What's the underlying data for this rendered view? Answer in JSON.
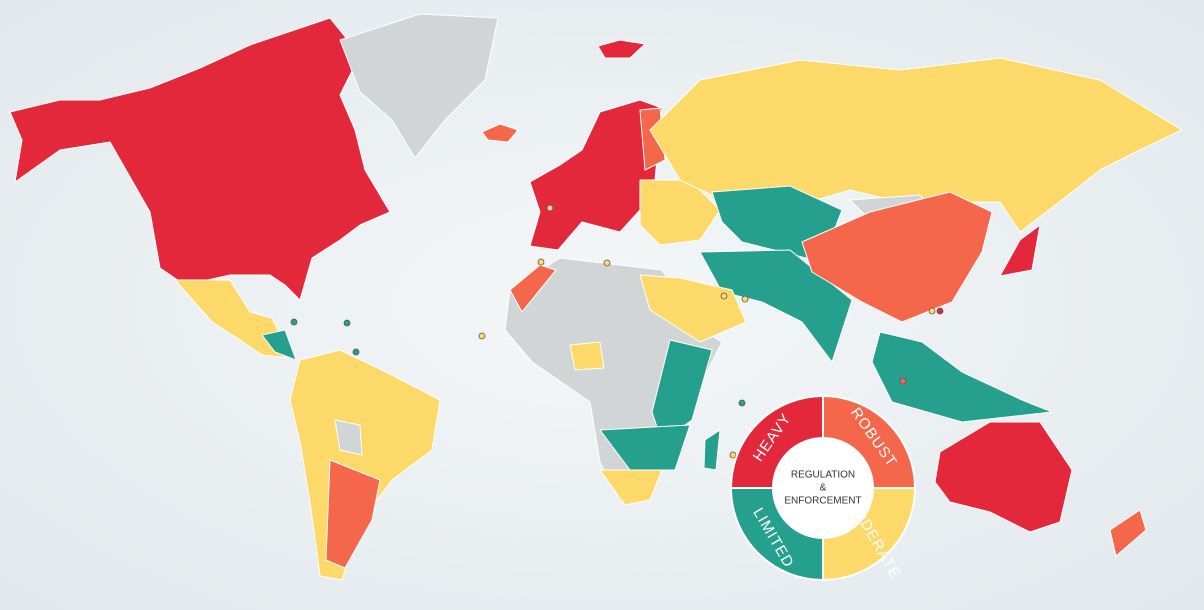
{
  "legend": {
    "title_lines": [
      "REGULATION",
      "&",
      "ENFORCEMENT"
    ],
    "levels": [
      {
        "label": "HEAVY",
        "color": "#e3283b"
      },
      {
        "label": "ROBUST",
        "color": "#f4674a"
      },
      {
        "label": "MODERATE",
        "color": "#fdd96a"
      },
      {
        "label": "LIMITED",
        "color": "#26a08e"
      }
    ]
  }
}
